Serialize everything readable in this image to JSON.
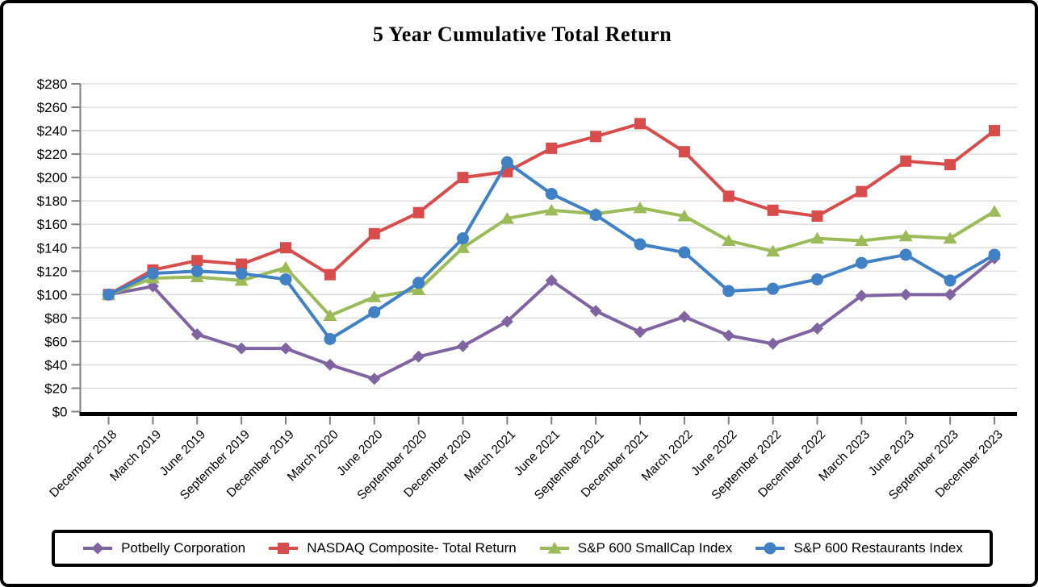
{
  "title": "5 Year Cumulative Total Return",
  "chart_data": {
    "type": "line",
    "title": "5 Year Cumulative Total Return",
    "categories": [
      "December 2018",
      "March 2019",
      "June 2019",
      "September 2019",
      "December 2019",
      "March 2020",
      "June 2020",
      "September 2020",
      "December 2020",
      "March 2021",
      "June 2021",
      "September 2021",
      "December 2021",
      "March 2022",
      "June 2022",
      "September 2022",
      "December 2022",
      "March 2023",
      "June 2023",
      "September 2023",
      "December 2023"
    ],
    "series": [
      {
        "name": "Potbelly Corporation",
        "color": "#8064A2",
        "marker": "diamond",
        "values": [
          100,
          107,
          66,
          54,
          54,
          40,
          28,
          47,
          56,
          77,
          112,
          86,
          68,
          81,
          65,
          58,
          71,
          99,
          100,
          100,
          131
        ]
      },
      {
        "name": "NASDAQ Composite- Total Return",
        "color": "#D94C4C",
        "marker": "square",
        "values": [
          100,
          121,
          129,
          126,
          140,
          117,
          152,
          170,
          200,
          205,
          225,
          235,
          246,
          222,
          184,
          172,
          167,
          188,
          214,
          211,
          240
        ]
      },
      {
        "name": "S&P 600 SmallCap Index",
        "color": "#9BBB59",
        "marker": "triangle",
        "values": [
          100,
          114,
          115,
          112,
          123,
          82,
          98,
          104,
          140,
          165,
          172,
          169,
          174,
          167,
          146,
          137,
          148,
          146,
          150,
          148,
          171
        ]
      },
      {
        "name": "S&P 600 Restaurants Index",
        "color": "#4080C4",
        "marker": "circle",
        "values": [
          100,
          118,
          120,
          118,
          113,
          62,
          85,
          110,
          148,
          213,
          186,
          168,
          143,
          136,
          103,
          105,
          113,
          127,
          134,
          112,
          134
        ]
      }
    ],
    "y_axis": {
      "min": 0,
      "max": 280,
      "step": 20,
      "tick_prefix": "$",
      "tick_labels": [
        "$0",
        "$20",
        "$40",
        "$60",
        "$80",
        "$100",
        "$120",
        "$140",
        "$160",
        "$180",
        "$200",
        "$220",
        "$240",
        "$260",
        "$280"
      ]
    },
    "x_axis": {
      "label_rotation_deg": 45
    },
    "grid": true,
    "legend_position": "bottom",
    "colors": {
      "gridline": "#DBDBDB",
      "axis_gray": "#808080",
      "x_axis_line": "#000000",
      "text": "#000000"
    }
  }
}
